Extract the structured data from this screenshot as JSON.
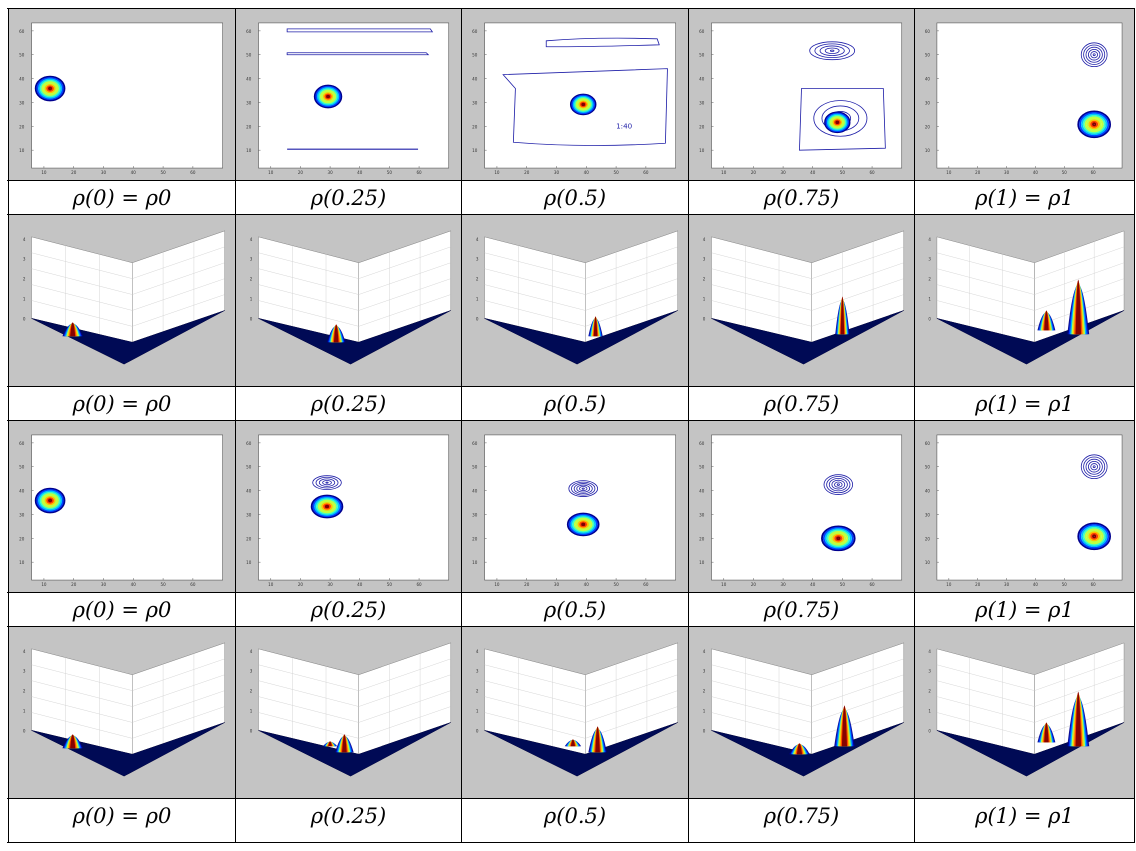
{
  "figure": {
    "rows": [
      {
        "kind": "contour",
        "captions": [
          "ρ(0) = ρ0",
          "ρ(0.25)",
          "ρ(0.5)",
          "ρ(0.75)",
          "ρ(1) = ρ1"
        ],
        "y_ticks": [
          "60",
          "50",
          "40",
          "30",
          "20",
          "10"
        ],
        "x_ticks": [
          "10",
          "20",
          "30",
          "40",
          "50",
          "60"
        ],
        "annotation": "1:40"
      },
      {
        "kind": "surface",
        "captions": [
          "ρ(0) = ρ0",
          "ρ(0.25)",
          "ρ(0.5)",
          "ρ(0.75)",
          "ρ(1) = ρ1"
        ],
        "z_ticks": [
          "4",
          "3",
          "2",
          "1",
          "0"
        ]
      },
      {
        "kind": "contour",
        "captions": [
          "ρ(0) = ρ0",
          "ρ(0.25)",
          "ρ(0.5)",
          "ρ(0.75)",
          "ρ(1) = ρ1"
        ],
        "y_ticks": [
          "60",
          "50",
          "40",
          "30",
          "20",
          "10"
        ],
        "x_ticks": [
          "10",
          "20",
          "30",
          "40",
          "50",
          "60"
        ]
      },
      {
        "kind": "surface",
        "captions": [
          "ρ(0) = ρ0",
          "ρ(0.25)",
          "ρ(0.5)",
          "ρ(0.75)",
          "ρ(1) = ρ1"
        ],
        "z_ticks": [
          "4",
          "3",
          "2",
          "1",
          "0"
        ]
      }
    ]
  },
  "colors": {
    "background_panel": "#c4c4c4",
    "axes_box": "#ffffff",
    "contour_outer": "#1f1fa8",
    "jet_palette": [
      "#00008f",
      "#0040ff",
      "#00c0ff",
      "#40ffbf",
      "#bfff40",
      "#ffc000",
      "#ff4000",
      "#800000"
    ]
  }
}
